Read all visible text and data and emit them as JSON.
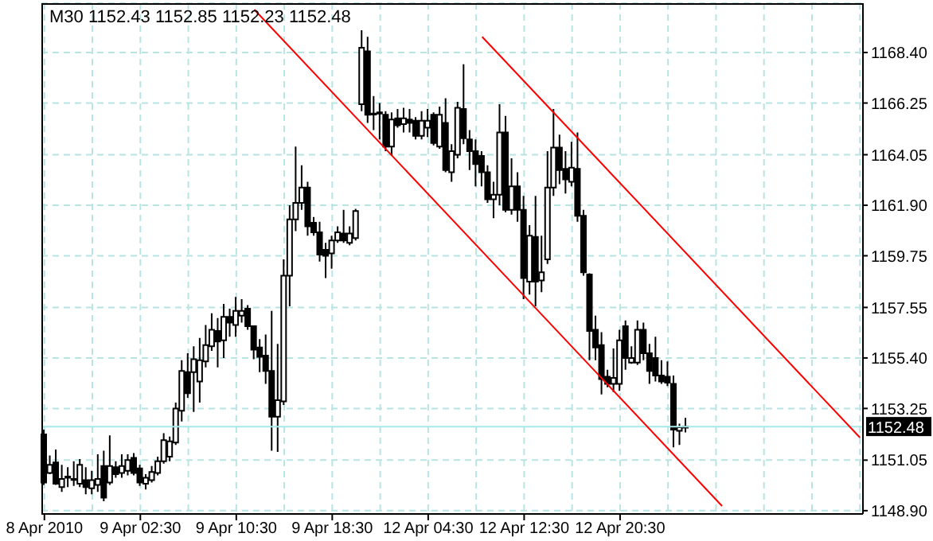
{
  "chart_data": {
    "type": "candlestick",
    "title": "M30 1152.43 1152.85 1152.23 1152.48",
    "color": "#000000",
    "categories": [
      "8 Apr 2010",
      null,
      null,
      null,
      null,
      null,
      null,
      null,
      null,
      null,
      null,
      null,
      null,
      null,
      null,
      null,
      "9 Apr 02:30",
      null,
      null,
      null,
      null,
      null,
      null,
      null,
      null,
      null,
      null,
      null,
      null,
      null,
      null,
      null,
      "9 Apr 10:30",
      null,
      null,
      null,
      null,
      null,
      null,
      null,
      null,
      null,
      null,
      null,
      null,
      null,
      null,
      null,
      "9 Apr 18:30",
      null,
      null,
      null,
      null,
      null,
      null,
      null,
      null,
      null,
      null,
      null,
      null,
      null,
      null,
      null,
      "12 Apr 04:30",
      null,
      null,
      null,
      null,
      null,
      null,
      null,
      null,
      null,
      null,
      null,
      null,
      null,
      null,
      null,
      "12 Apr 12:30",
      null,
      null,
      null,
      null,
      null,
      null,
      null,
      null,
      null,
      null,
      null,
      null,
      null,
      null,
      null,
      "12 Apr 20:30",
      null,
      null,
      null,
      null,
      null,
      null,
      null,
      null,
      null,
      null,
      null,
      null,
      null,
      null,
      null,
      null,
      null,
      null,
      null,
      null,
      null,
      null,
      null,
      null,
      null,
      null,
      null,
      null,
      null,
      null,
      null,
      null,
      null,
      null,
      null,
      null,
      null,
      null,
      null,
      null
    ],
    "ohlc": [
      [
        1152.15,
        1152.35,
        1150.0,
        1150.1
      ],
      [
        1150.5,
        1151.25,
        1150.45,
        1150.85
      ],
      [
        1150.95,
        1151.5,
        1150.0,
        1150.05
      ],
      [
        1149.9,
        1150.85,
        1149.7,
        1150.25
      ],
      [
        1150.3,
        1150.75,
        1149.9,
        1150.35
      ],
      [
        1150.25,
        1151.0,
        1149.95,
        1150.25
      ],
      [
        1150.05,
        1151.1,
        1149.9,
        1150.85
      ],
      [
        1150.2,
        1150.75,
        1149.6,
        1149.9
      ],
      [
        1149.85,
        1150.6,
        1149.6,
        1150.2
      ],
      [
        1150.0,
        1151.3,
        1149.7,
        1150.25
      ],
      [
        1150.8,
        1151.45,
        1149.3,
        1149.45
      ],
      [
        1150.1,
        1152.1,
        1150.0,
        1150.8
      ],
      [
        1150.75,
        1151.0,
        1150.3,
        1150.45
      ],
      [
        1150.5,
        1151.3,
        1150.3,
        1150.8
      ],
      [
        1150.6,
        1151.3,
        1150.4,
        1151.05
      ],
      [
        1151.15,
        1151.35,
        1150.4,
        1150.5
      ],
      [
        1150.7,
        1150.85,
        1149.95,
        1150.1
      ],
      [
        1150.05,
        1150.45,
        1149.8,
        1150.3
      ],
      [
        1150.2,
        1150.8,
        1150.1,
        1150.55
      ],
      [
        1150.5,
        1151.2,
        1150.4,
        1151.0
      ],
      [
        1151.0,
        1152.2,
        1150.9,
        1151.9
      ],
      [
        1151.2,
        1152.05,
        1151.0,
        1151.85
      ],
      [
        1151.8,
        1153.5,
        1151.7,
        1153.25
      ],
      [
        1153.15,
        1155.3,
        1152.7,
        1154.85
      ],
      [
        1154.8,
        1155.6,
        1153.7,
        1153.9
      ],
      [
        1154.8,
        1155.9,
        1153.1,
        1155.35
      ],
      [
        1154.4,
        1156.25,
        1153.5,
        1155.3
      ],
      [
        1155.25,
        1156.8,
        1155.0,
        1155.95
      ],
      [
        1155.9,
        1157.3,
        1155.7,
        1156.6
      ],
      [
        1156.55,
        1157.1,
        1155.0,
        1156.1
      ],
      [
        1156.15,
        1157.7,
        1155.4,
        1157.15
      ],
      [
        1157.15,
        1157.5,
        1156.3,
        1156.9
      ],
      [
        1156.8,
        1158.0,
        1156.3,
        1157.4
      ],
      [
        1157.2,
        1157.9,
        1156.9,
        1157.4
      ],
      [
        1157.5,
        1157.65,
        1156.6,
        1156.75
      ],
      [
        1156.75,
        1156.75,
        1155.35,
        1155.75
      ],
      [
        1155.85,
        1156.2,
        1154.8,
        1155.45
      ],
      [
        1155.5,
        1156.4,
        1154.3,
        1154.85
      ],
      [
        1154.85,
        1157.4,
        1151.45,
        1152.9
      ],
      [
        1152.9,
        1156.0,
        1151.4,
        1153.6
      ],
      [
        1153.55,
        1159.6,
        1153.4,
        1158.9
      ],
      [
        1158.9,
        1161.9,
        1157.6,
        1161.3
      ],
      [
        1161.3,
        1164.4,
        1160.8,
        1162.0
      ],
      [
        1162.0,
        1163.6,
        1161.7,
        1162.65
      ],
      [
        1162.65,
        1162.9,
        1160.6,
        1161.0
      ],
      [
        1161.15,
        1161.4,
        1160.6,
        1160.75
      ],
      [
        1160.75,
        1161.2,
        1159.5,
        1159.8
      ],
      [
        1160.0,
        1160.3,
        1158.8,
        1159.75
      ],
      [
        1159.85,
        1160.6,
        1159.2,
        1160.4
      ],
      [
        1160.4,
        1161.0,
        1160.3,
        1160.75
      ],
      [
        1160.7,
        1161.7,
        1160.3,
        1160.4
      ],
      [
        1160.3,
        1161.0,
        1160.2,
        1160.7
      ],
      [
        1160.5,
        1161.75,
        1160.4,
        1161.65
      ],
      [
        1166.2,
        1169.35,
        1165.9,
        1168.6
      ],
      [
        1168.45,
        1169.07,
        1165.4,
        1165.75
      ],
      [
        1165.8,
        1166.55,
        1165.1,
        1165.8
      ],
      [
        1165.85,
        1166.25,
        1164.7,
        1165.8
      ],
      [
        1165.75,
        1165.9,
        1164.2,
        1164.4
      ],
      [
        1164.4,
        1165.85,
        1164.0,
        1165.55
      ],
      [
        1165.6,
        1166.0,
        1165.2,
        1165.3
      ],
      [
        1165.35,
        1166.05,
        1165.0,
        1165.6
      ],
      [
        1165.55,
        1166.0,
        1165.0,
        1165.4
      ],
      [
        1165.5,
        1165.65,
        1164.7,
        1164.85
      ],
      [
        1164.85,
        1165.9,
        1164.7,
        1165.5
      ],
      [
        1165.2,
        1166.0,
        1164.8,
        1165.5
      ],
      [
        1165.75,
        1165.85,
        1164.45,
        1164.55
      ],
      [
        1164.4,
        1166.1,
        1164.3,
        1165.75
      ],
      [
        1165.4,
        1166.45,
        1163.3,
        1163.4
      ],
      [
        1163.3,
        1164.5,
        1162.9,
        1164.2
      ],
      [
        1164.05,
        1166.3,
        1163.9,
        1166.05
      ],
      [
        1166.0,
        1167.9,
        1164.5,
        1164.75
      ],
      [
        1164.7,
        1165.1,
        1163.4,
        1164.2
      ],
      [
        1164.2,
        1164.7,
        1162.7,
        1163.65
      ],
      [
        1164.0,
        1164.2,
        1162.7,
        1163.3
      ],
      [
        1163.3,
        1163.6,
        1162.0,
        1162.15
      ],
      [
        1162.15,
        1162.9,
        1161.35,
        1162.35
      ],
      [
        1162.35,
        1166.2,
        1161.9,
        1165.0
      ],
      [
        1165.0,
        1165.7,
        1161.6,
        1161.7
      ],
      [
        1161.7,
        1163.9,
        1161.5,
        1162.7
      ],
      [
        1162.7,
        1163.3,
        1161.2,
        1161.7
      ],
      [
        1161.7,
        1162.3,
        1157.9,
        1158.8
      ],
      [
        1158.65,
        1161.05,
        1158.1,
        1160.6
      ],
      [
        1160.55,
        1162.3,
        1157.6,
        1158.65
      ],
      [
        1158.7,
        1160.6,
        1158.2,
        1159.05
      ],
      [
        1159.6,
        1164.2,
        1159.4,
        1162.65
      ],
      [
        1162.65,
        1166.0,
        1162.3,
        1164.35
      ],
      [
        1164.35,
        1164.9,
        1162.8,
        1163.4
      ],
      [
        1163.45,
        1164.2,
        1162.4,
        1163.0
      ],
      [
        1162.9,
        1164.6,
        1162.7,
        1163.5
      ],
      [
        1163.45,
        1165.0,
        1161.2,
        1161.45
      ],
      [
        1161.45,
        1161.7,
        1158.9,
        1159.05
      ],
      [
        1158.95,
        1159.0,
        1155.3,
        1156.55
      ],
      [
        1156.6,
        1157.2,
        1155.3,
        1155.85
      ],
      [
        1155.95,
        1156.5,
        1153.85,
        1154.5
      ],
      [
        1154.6,
        1154.9,
        1154.15,
        1154.3
      ],
      [
        1154.3,
        1155.8,
        1153.95,
        1154.55
      ],
      [
        1154.3,
        1156.6,
        1154.0,
        1156.15
      ],
      [
        1156.75,
        1157.0,
        1154.9,
        1155.4
      ],
      [
        1155.2,
        1155.9,
        1155.15,
        1155.4
      ],
      [
        1155.2,
        1157.0,
        1155.1,
        1156.6
      ],
      [
        1156.6,
        1156.9,
        1155.3,
        1155.6
      ],
      [
        1155.6,
        1156.0,
        1154.3,
        1154.85
      ],
      [
        1155.4,
        1156.3,
        1154.4,
        1154.65
      ],
      [
        1154.65,
        1155.3,
        1154.3,
        1154.4
      ],
      [
        1154.6,
        1155.25,
        1154.2,
        1154.35
      ],
      [
        1154.3,
        1154.65,
        1151.6,
        1152.35
      ],
      [
        1152.3,
        1152.6,
        1151.7,
        1152.45
      ],
      [
        1152.43,
        1152.85,
        1152.23,
        1152.48
      ],
      null,
      null,
      null,
      null,
      null,
      null,
      null,
      null,
      null,
      null,
      null,
      null,
      null,
      null,
      null,
      null,
      null,
      null,
      null,
      null,
      null,
      null,
      null,
      null,
      null,
      null,
      null,
      null,
      null
    ],
    "series": [
      {
        "type": "line",
        "color": "#ff0000",
        "values": [
          null,
          null,
          null,
          null,
          null,
          null,
          null,
          null,
          null,
          null,
          null,
          null,
          null,
          null,
          null,
          null,
          null,
          null,
          null,
          null,
          null,
          null,
          null,
          null,
          null,
          null,
          null,
          null,
          null,
          null,
          null,
          null,
          null,
          null,
          null,
          1170.23,
          null,
          null,
          null,
          null,
          null,
          null,
          null,
          null,
          null,
          null,
          null,
          null,
          null,
          null,
          null,
          null,
          null,
          null,
          null,
          null,
          null,
          null,
          null,
          null,
          null,
          null,
          null,
          null,
          null,
          null,
          null,
          null,
          null,
          null,
          null,
          null,
          null,
          null,
          null,
          null,
          null,
          null,
          null,
          null,
          null,
          null,
          null,
          null,
          null,
          null,
          null,
          null,
          null,
          null,
          null,
          null,
          null,
          null,
          null,
          null,
          null,
          null,
          null,
          null,
          null,
          null,
          null,
          null,
          null,
          null,
          null,
          null,
          null,
          null,
          null,
          null,
          null,
          1149.1,
          null,
          null,
          null,
          null,
          null,
          null,
          null,
          null,
          null,
          null,
          null,
          null,
          null,
          null,
          null,
          null,
          null,
          null,
          null,
          null,
          null,
          null,
          null
        ]
      },
      {
        "type": "line",
        "color": "#ff0000",
        "values": [
          null,
          null,
          null,
          null,
          null,
          null,
          null,
          null,
          null,
          null,
          null,
          null,
          null,
          null,
          null,
          null,
          null,
          null,
          null,
          null,
          null,
          null,
          null,
          null,
          null,
          null,
          null,
          null,
          null,
          null,
          null,
          null,
          null,
          null,
          null,
          null,
          null,
          null,
          null,
          null,
          null,
          null,
          null,
          null,
          null,
          null,
          null,
          null,
          null,
          null,
          null,
          null,
          null,
          null,
          null,
          null,
          null,
          null,
          null,
          null,
          null,
          null,
          null,
          null,
          null,
          null,
          null,
          null,
          null,
          null,
          null,
          null,
          null,
          1169.07,
          null,
          null,
          null,
          null,
          null,
          null,
          null,
          null,
          null,
          null,
          null,
          null,
          null,
          null,
          null,
          null,
          null,
          null,
          null,
          null,
          null,
          null,
          null,
          null,
          null,
          null,
          null,
          null,
          null,
          null,
          null,
          null,
          null,
          null,
          null,
          null,
          null,
          null,
          null,
          null,
          null,
          null,
          null,
          null,
          null,
          null,
          null,
          null,
          null,
          null,
          null,
          null,
          null,
          null,
          null,
          null,
          null,
          null,
          null,
          null,
          null,
          null,
          1152.01
        ]
      }
    ],
    "ylim": [
      1148.76,
      1170.5
    ],
    "yticks": [
      {
        "value": 1148.9,
        "label": "1148.90"
      },
      {
        "value": 1151.05,
        "label": "1151.05"
      },
      {
        "value": 1153.25,
        "label": "1153.25"
      },
      {
        "value": 1155.4,
        "label": "1155.40"
      },
      {
        "value": 1157.55,
        "label": "1157.55"
      },
      {
        "value": 1159.75,
        "label": "1159.75"
      },
      {
        "value": 1161.9,
        "label": "1161.90"
      },
      {
        "value": 1164.05,
        "label": "1164.05"
      },
      {
        "value": 1166.25,
        "label": "1166.25"
      },
      {
        "value": 1168.4,
        "label": "1168.40"
      }
    ],
    "grid": true,
    "ref_lines": [
      {
        "axis": "y",
        "value": 1152.48,
        "label": "1152.48",
        "color": "#a8e8e8"
      }
    ]
  }
}
